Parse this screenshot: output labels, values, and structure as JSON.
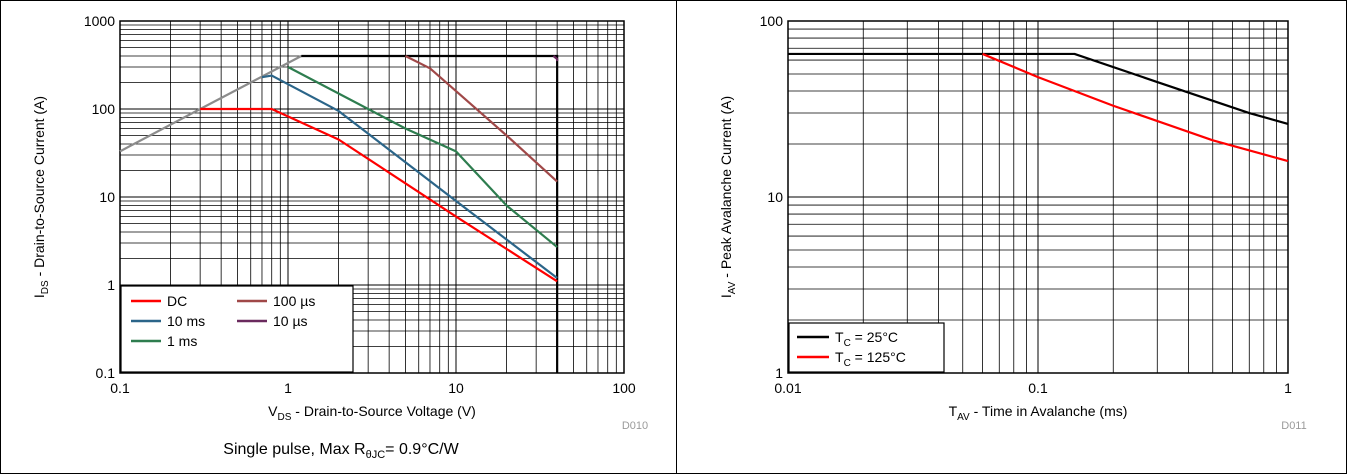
{
  "chart_data": [
    {
      "type": "line",
      "title": "",
      "xlabel": "V_DS - Drain-to-Source Voltage (V)",
      "ylabel": "I_DS - Drain-to-Source Current (A)",
      "xscale": "log",
      "yscale": "log",
      "xlim": [
        0.1,
        100
      ],
      "ylim": [
        0.1,
        1000
      ],
      "x_tick_labels": [
        "0.1",
        "1",
        "10",
        "100"
      ],
      "y_tick_labels": [
        "0.1",
        "1",
        "10",
        "100",
        "1000"
      ],
      "grid": true,
      "legend_position": "bottom-left",
      "figure_code": "D010",
      "caption": "Single pulse, Max RθJC= 0.9°C/W",
      "series": [
        {
          "name": "DC",
          "color": "#ff0000",
          "x": [
            0.3,
            0.8,
            2,
            10,
            40
          ],
          "y": [
            100,
            100,
            45,
            6,
            1.1
          ]
        },
        {
          "name": "10 ms",
          "color": "#2b6589",
          "x": [
            0.7,
            0.8,
            2,
            10,
            40
          ],
          "y": [
            230,
            240,
            95,
            9,
            1.2
          ]
        },
        {
          "name": "1 ms",
          "color": "#2e7d4f",
          "x": [
            1,
            5,
            10,
            20,
            40
          ],
          "y": [
            300,
            60,
            33,
            8,
            2.7
          ]
        },
        {
          "name": "100 µs",
          "color": "#a04848",
          "x": [
            5,
            7,
            10,
            20,
            40
          ],
          "y": [
            400,
            290,
            160,
            50,
            15
          ]
        },
        {
          "name": "10 µs",
          "color": "#6a2a5e",
          "x": [
            38,
            40,
            40
          ],
          "y": [
            400,
            370,
            350
          ]
        }
      ],
      "reference_lines": [
        {
          "color": "#8c8c8c",
          "x": [
            0.1,
            0.3,
            1.2
          ],
          "y": [
            33,
            100,
            400
          ]
        },
        {
          "color": "#000000",
          "x": [
            1.2,
            40,
            40
          ],
          "y": [
            400,
            400,
            0.1
          ]
        }
      ],
      "legend": {
        "col1": [
          {
            "label": "DC",
            "color": "#ff0000"
          },
          {
            "label": "10 ms",
            "color": "#2b6589"
          },
          {
            "label": "1 ms",
            "color": "#2e7d4f"
          }
        ],
        "col2": [
          {
            "label": "100 µs",
            "color": "#a04848"
          },
          {
            "label": "10 µs",
            "color": "#6a2a5e"
          }
        ]
      }
    },
    {
      "type": "line",
      "title": "",
      "xlabel": "T_AV - Time in Avalanche (ms)",
      "ylabel": "I_AV - Peak Avalanche Current (A)",
      "xscale": "log",
      "yscale": "log",
      "xlim": [
        0.01,
        1
      ],
      "ylim": [
        1,
        100
      ],
      "x_tick_labels": [
        "0.01",
        "0.1",
        "1"
      ],
      "y_tick_labels": [
        "1",
        "10",
        "100"
      ],
      "grid": true,
      "legend_position": "bottom-left",
      "figure_code": "D011",
      "series": [
        {
          "name": "T_C = 25°C",
          "color": "#000000",
          "x": [
            0.01,
            0.14,
            0.3,
            0.7,
            1
          ],
          "y": [
            65,
            65,
            45,
            30,
            26
          ]
        },
        {
          "name": "T_C = 125°C",
          "color": "#ff0000",
          "x": [
            0.06,
            0.1,
            0.2,
            0.5,
            1
          ],
          "y": [
            65,
            48,
            33,
            21,
            16
          ]
        }
      ],
      "legend": {
        "items": [
          {
            "label": "T_C = 25°C",
            "color": "#000000"
          },
          {
            "label": "T_C = 125°C",
            "color": "#ff0000"
          }
        ]
      }
    }
  ]
}
